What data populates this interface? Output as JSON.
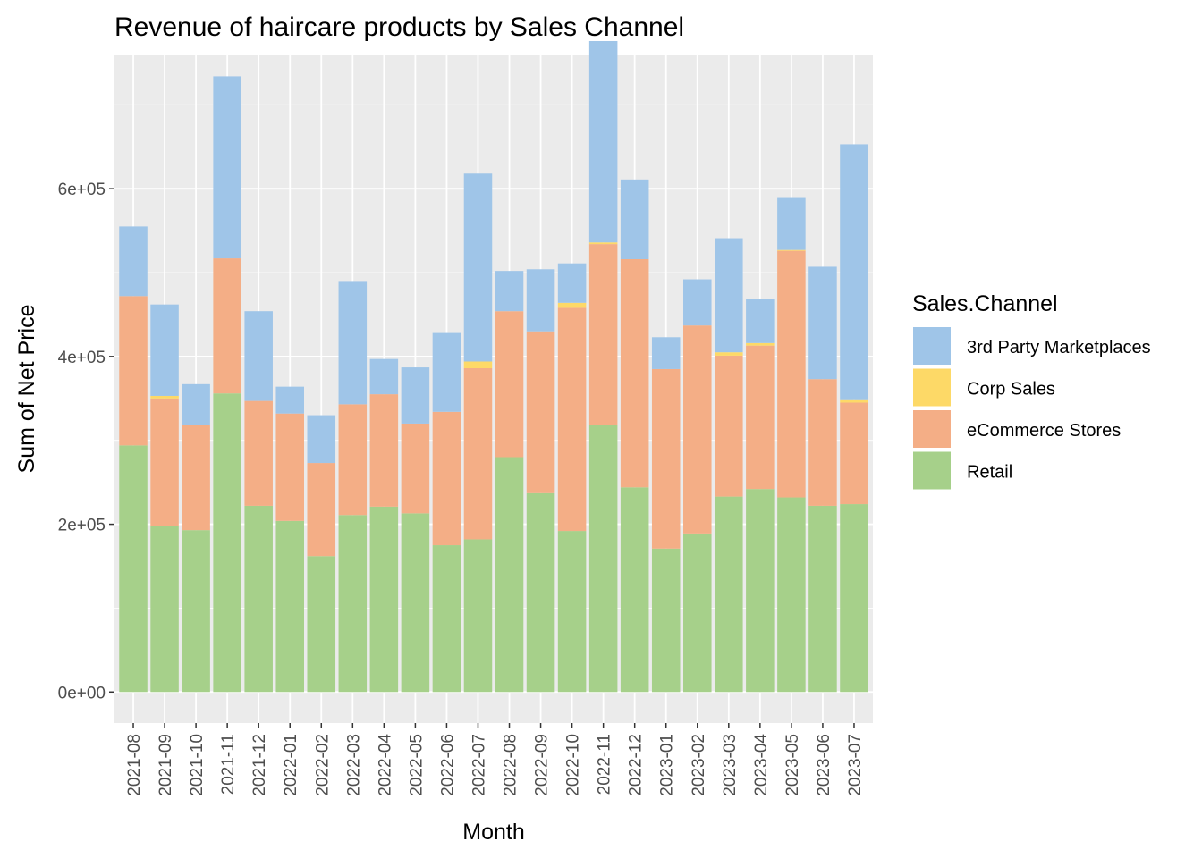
{
  "chart_data": {
    "type": "bar",
    "stacked": true,
    "title": "Revenue of haircare products by Sales Channel",
    "xlabel": "Month",
    "ylabel": "Sum of Net Price",
    "ylim": [
      -37000,
      760000
    ],
    "yticks": [
      0,
      200000,
      400000,
      600000
    ],
    "ytick_labels": [
      "0e+00",
      "2e+05",
      "4e+05",
      "6e+05"
    ],
    "grid": true,
    "legend_title": "Sales.Channel",
    "legend_position": "right",
    "categories": [
      "2021-08",
      "2021-09",
      "2021-10",
      "2021-11",
      "2021-12",
      "2022-01",
      "2022-02",
      "2022-03",
      "2022-04",
      "2022-05",
      "2022-06",
      "2022-07",
      "2022-08",
      "2022-09",
      "2022-10",
      "2022-11",
      "2022-12",
      "2023-01",
      "2023-02",
      "2023-03",
      "2023-04",
      "2023-05",
      "2023-06",
      "2023-07"
    ],
    "series": [
      {
        "name": "Retail",
        "color": "#a6d08a",
        "values": [
          294000,
          198000,
          193000,
          356000,
          222000,
          204000,
          162000,
          211000,
          221000,
          213000,
          175000,
          182000,
          280000,
          237000,
          192000,
          318000,
          244000,
          171000,
          189000,
          233000,
          242000,
          232000,
          222000,
          224000
        ]
      },
      {
        "name": "eCommerce Stores",
        "color": "#f4ae86",
        "values": [
          178000,
          152000,
          125000,
          161000,
          125000,
          128000,
          111000,
          132000,
          134000,
          107000,
          159000,
          204000,
          174000,
          193000,
          266000,
          216000,
          272000,
          214000,
          248000,
          168000,
          171000,
          294000,
          151000,
          121000
        ]
      },
      {
        "name": "Corp Sales",
        "color": "#fdd967",
        "values": [
          0,
          3000,
          0,
          0,
          0,
          0,
          0,
          0,
          0,
          0,
          0,
          8000,
          0,
          0,
          6000,
          2000,
          0,
          0,
          0,
          4000,
          3000,
          1000,
          0,
          4000
        ]
      },
      {
        "name": "3rd Party Marketplaces",
        "color": "#9fc5e8",
        "values": [
          83000,
          109000,
          49000,
          217000,
          107000,
          32000,
          57000,
          147000,
          42000,
          67000,
          94000,
          224000,
          48000,
          74000,
          47000,
          240000,
          95000,
          38000,
          55000,
          136000,
          53000,
          63000,
          134000,
          304000
        ]
      }
    ],
    "legend_order": [
      "3rd Party Marketplaces",
      "Corp Sales",
      "eCommerce Stores",
      "Retail"
    ]
  },
  "colors": {
    "panel_background": "#ebebeb",
    "grid_major": "#ffffff"
  }
}
